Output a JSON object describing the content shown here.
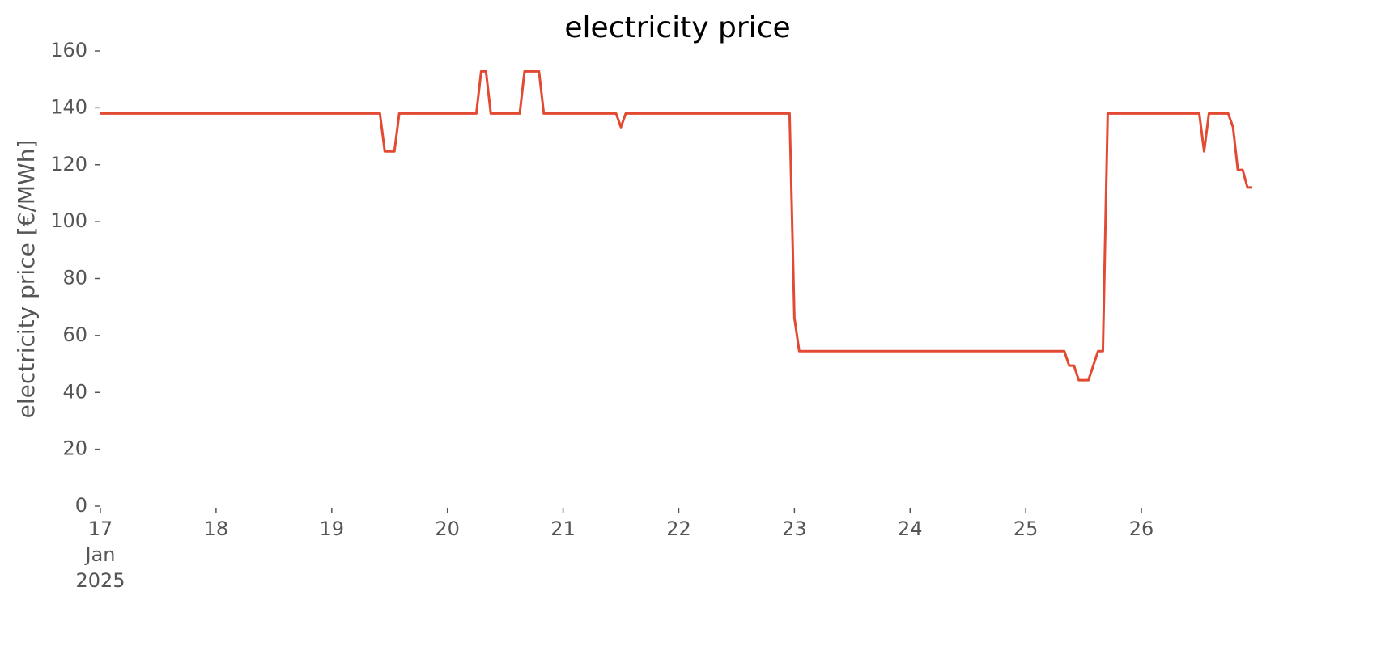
{
  "chart_data": {
    "type": "line",
    "title": "electricity price",
    "ylabel": "electricity price [€/MWh]",
    "x": [
      "2025-01-17 00:00",
      "2025-01-19 10:00",
      "2025-01-19 11:00",
      "2025-01-19 13:00",
      "2025-01-19 14:00",
      "2025-01-20 06:00",
      "2025-01-20 07:00",
      "2025-01-20 08:00",
      "2025-01-20 09:00",
      "2025-01-20 15:00",
      "2025-01-20 16:00",
      "2025-01-20 19:00",
      "2025-01-20 20:00",
      "2025-01-21 11:00",
      "2025-01-21 12:00",
      "2025-01-21 13:00",
      "2025-01-22 23:00",
      "2025-01-23 00:00",
      "2025-01-23 01:00",
      "2025-01-25 08:00",
      "2025-01-25 09:00",
      "2025-01-25 10:00",
      "2025-01-25 11:00",
      "2025-01-25 13:00",
      "2025-01-25 15:00",
      "2025-01-25 16:00",
      "2025-01-25 17:00",
      "2025-01-26 12:00",
      "2025-01-26 13:00",
      "2025-01-26 14:00",
      "2025-01-26 18:00",
      "2025-01-26 19:00",
      "2025-01-26 20:00",
      "2025-01-26 21:00",
      "2025-01-26 22:00",
      "2025-01-26 23:00"
    ],
    "series": [
      {
        "name": "electricity price",
        "color": "#e24a33",
        "values": [
          138,
          138,
          124.7,
          124.7,
          138,
          138,
          152.8,
          152.8,
          138,
          138,
          152.8,
          152.8,
          138,
          138,
          133.2,
          138,
          138,
          66.2,
          54.5,
          54.5,
          49.4,
          49.4,
          44.3,
          44.3,
          54.5,
          54.5,
          138,
          138,
          124.7,
          138,
          138,
          133.2,
          118.2,
          118.2,
          112,
          112
        ]
      }
    ],
    "xlim": [
      "2025-01-17 00:00",
      "2025-01-26 23:00"
    ],
    "xticks": [
      {
        "value": "2025-01-17 00:00",
        "label": "17\nJan\n2025"
      },
      {
        "value": "2025-01-18 00:00",
        "label": "18"
      },
      {
        "value": "2025-01-19 00:00",
        "label": "19"
      },
      {
        "value": "2025-01-20 00:00",
        "label": "20"
      },
      {
        "value": "2025-01-21 00:00",
        "label": "21"
      },
      {
        "value": "2025-01-22 00:00",
        "label": "22"
      },
      {
        "value": "2025-01-23 00:00",
        "label": "23"
      },
      {
        "value": "2025-01-24 00:00",
        "label": "24"
      },
      {
        "value": "2025-01-25 00:00",
        "label": "25"
      },
      {
        "value": "2025-01-26 00:00",
        "label": "26"
      }
    ],
    "ylim": [
      0,
      160
    ],
    "yticks": [
      0,
      20,
      40,
      60,
      80,
      100,
      120,
      140,
      160
    ],
    "grid": false
  }
}
